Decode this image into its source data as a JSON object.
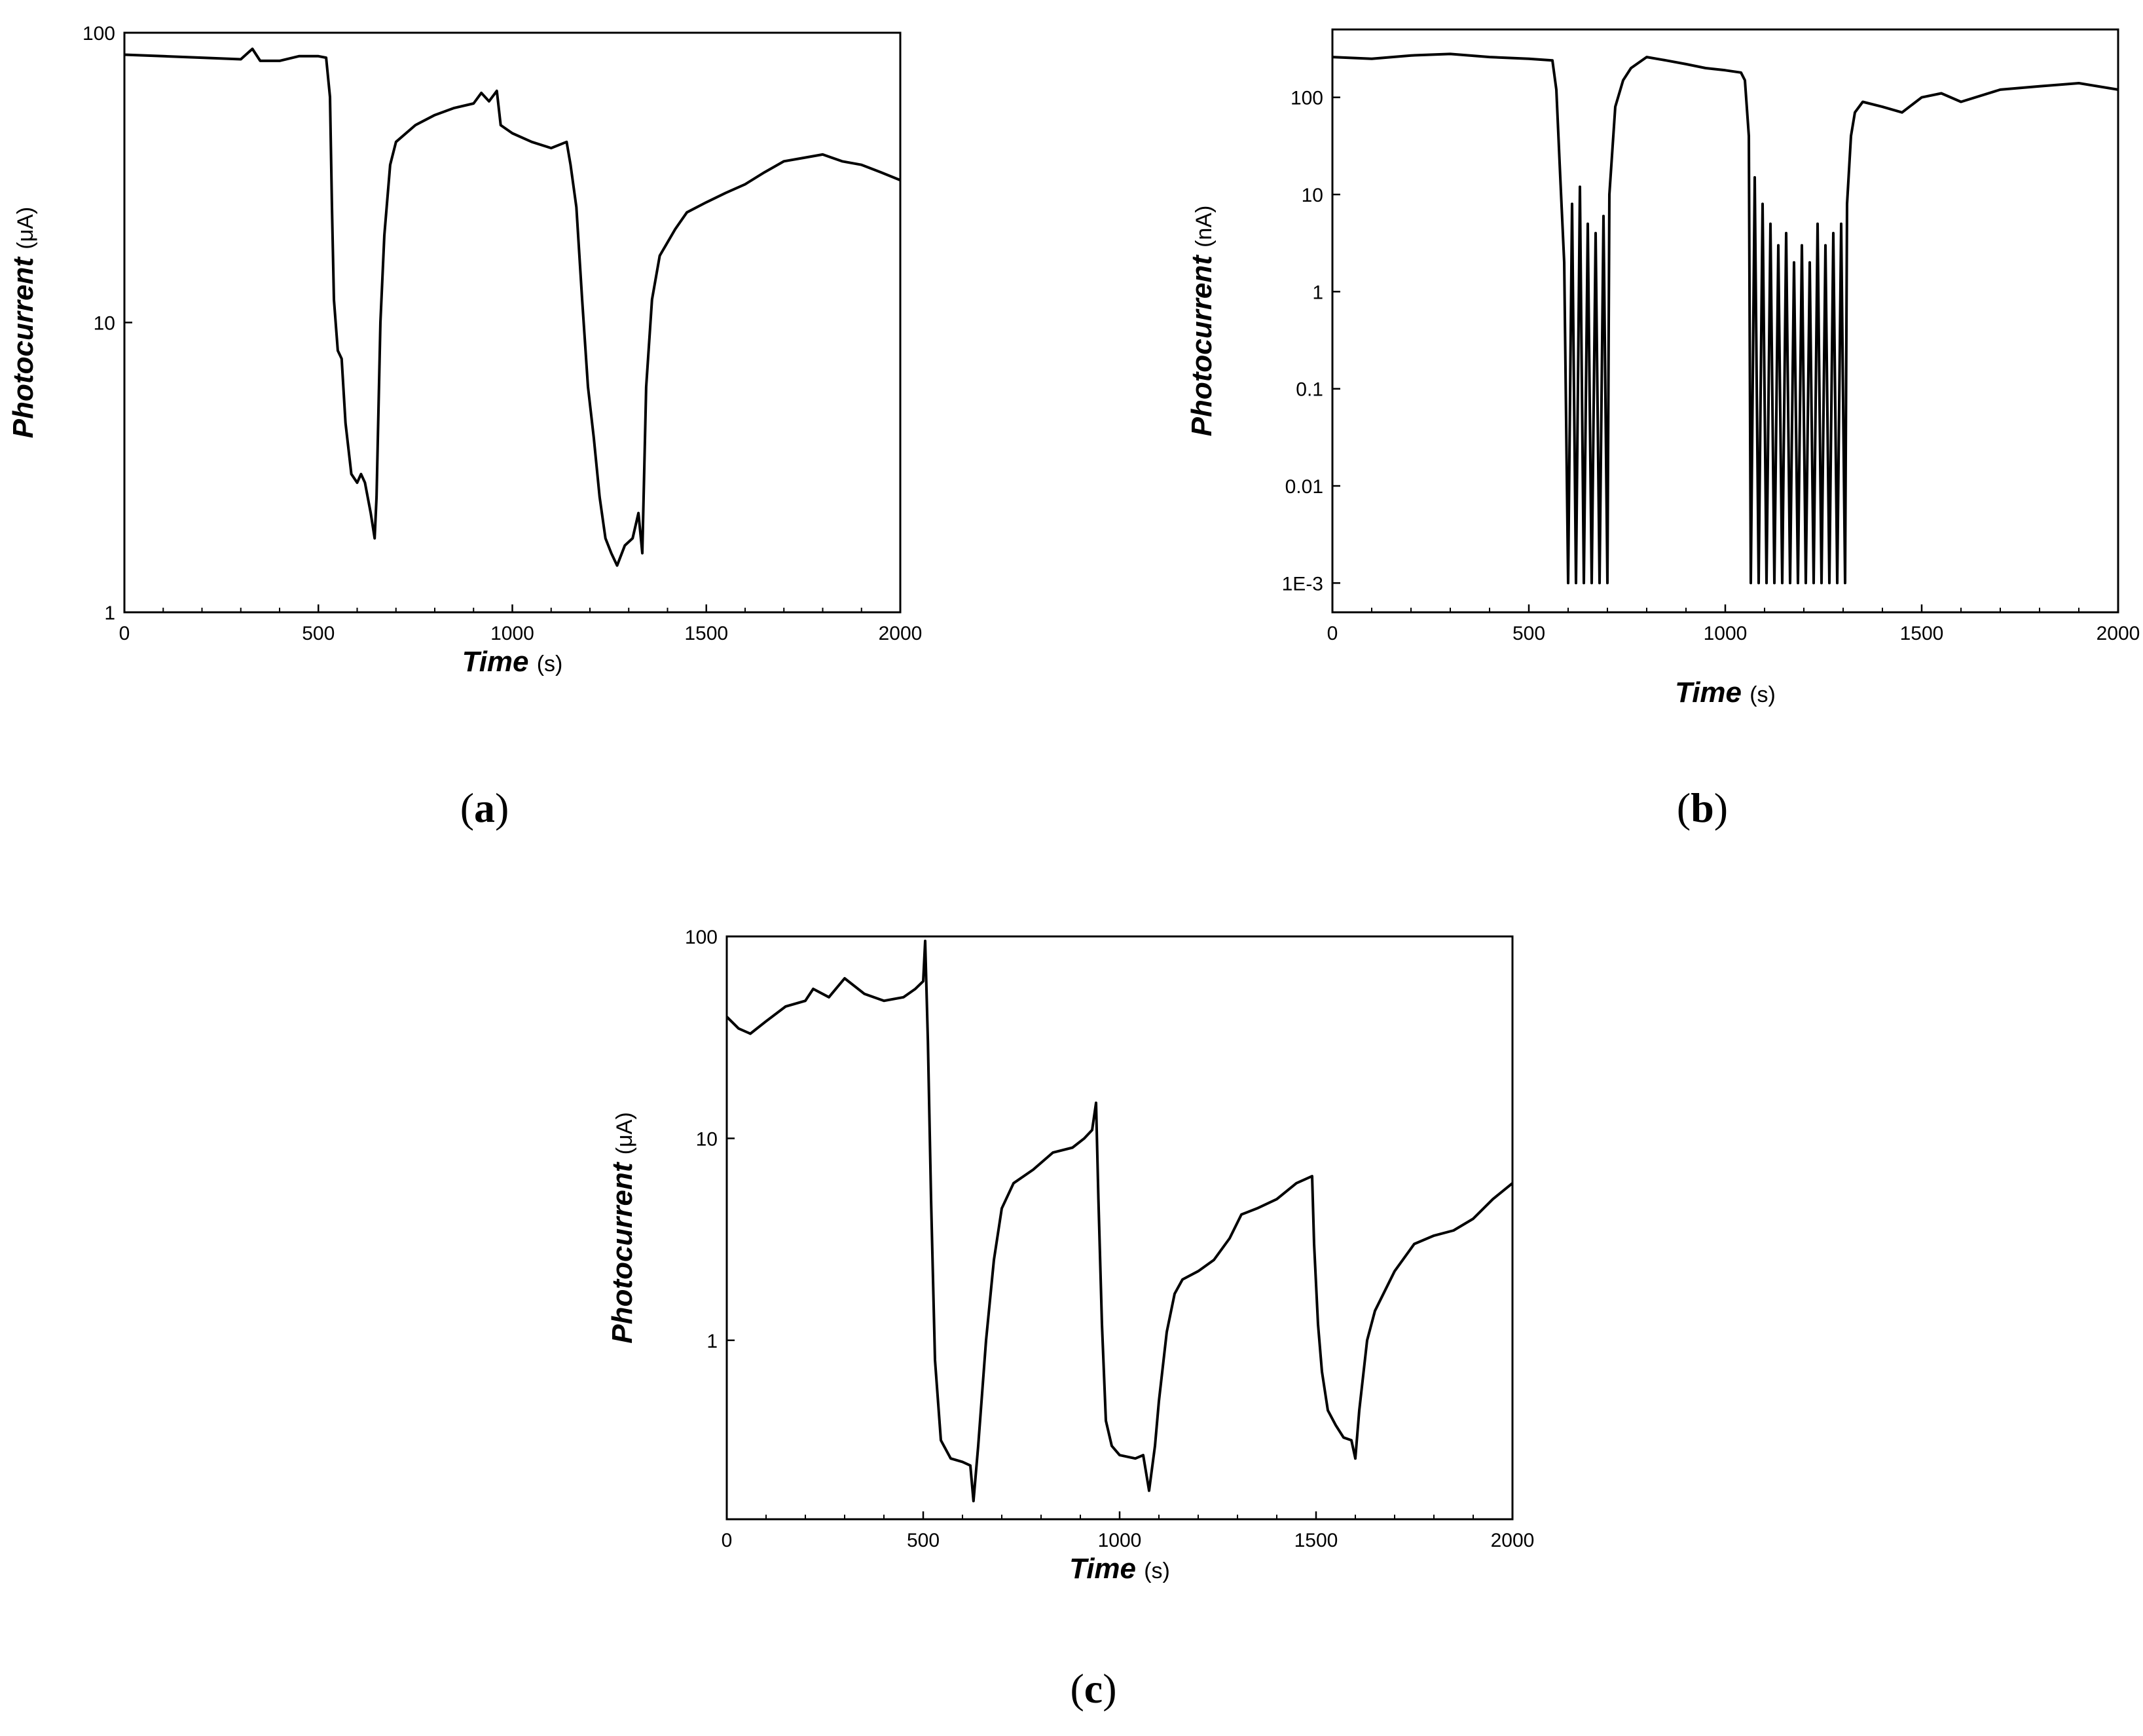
{
  "chart_data": [
    {
      "panel": "a",
      "type": "line",
      "xlabel": "Time",
      "xunit": "(s)",
      "ylabel": "Photocurrent",
      "yunit": "(μA)",
      "yscale": "log",
      "xlim": [
        0,
        2000
      ],
      "ylim": [
        1,
        100
      ],
      "xticks": [
        0,
        500,
        1000,
        1500,
        2000
      ],
      "yticks": [
        1,
        10,
        100
      ],
      "ytick_labels": [
        "1",
        "10",
        "100"
      ],
      "grid": false,
      "series": [
        {
          "points": [
            [
              0,
              84
            ],
            [
              100,
              83
            ],
            [
              200,
              82
            ],
            [
              300,
              81
            ],
            [
              330,
              88
            ],
            [
              350,
              80
            ],
            [
              400,
              80
            ],
            [
              450,
              83
            ],
            [
              500,
              83
            ],
            [
              520,
              82
            ],
            [
              530,
              60
            ],
            [
              535,
              25
            ],
            [
              540,
              12
            ],
            [
              550,
              8
            ],
            [
              560,
              7.5
            ],
            [
              570,
              4.5
            ],
            [
              585,
              3
            ],
            [
              600,
              2.8
            ],
            [
              610,
              3
            ],
            [
              620,
              2.8
            ],
            [
              635,
              2.2
            ],
            [
              645,
              1.8
            ],
            [
              650,
              2.5
            ],
            [
              660,
              10
            ],
            [
              670,
              20
            ],
            [
              685,
              35
            ],
            [
              700,
              42
            ],
            [
              750,
              48
            ],
            [
              800,
              52
            ],
            [
              850,
              55
            ],
            [
              900,
              57
            ],
            [
              920,
              62
            ],
            [
              940,
              58
            ],
            [
              960,
              63
            ],
            [
              970,
              48
            ],
            [
              1000,
              45
            ],
            [
              1050,
              42
            ],
            [
              1100,
              40
            ],
            [
              1140,
              42
            ],
            [
              1150,
              35
            ],
            [
              1165,
              25
            ],
            [
              1180,
              12
            ],
            [
              1195,
              6
            ],
            [
              1210,
              4
            ],
            [
              1225,
              2.5
            ],
            [
              1240,
              1.8
            ],
            [
              1255,
              1.6
            ],
            [
              1270,
              1.45
            ],
            [
              1290,
              1.7
            ],
            [
              1310,
              1.8
            ],
            [
              1325,
              2.2
            ],
            [
              1335,
              1.6
            ],
            [
              1345,
              6
            ],
            [
              1360,
              12
            ],
            [
              1380,
              17
            ],
            [
              1420,
              21
            ],
            [
              1450,
              24
            ],
            [
              1500,
              26
            ],
            [
              1550,
              28
            ],
            [
              1600,
              30
            ],
            [
              1650,
              33
            ],
            [
              1700,
              36
            ],
            [
              1750,
              37
            ],
            [
              1800,
              38
            ],
            [
              1850,
              36
            ],
            [
              1900,
              35
            ],
            [
              1950,
              33
            ],
            [
              2000,
              31
            ]
          ]
        }
      ]
    },
    {
      "panel": "b",
      "type": "line",
      "xlabel": "Time",
      "xunit": "(s)",
      "ylabel": "Photocurrent",
      "yunit": "(nA)",
      "yscale": "log",
      "xlim": [
        0,
        2000
      ],
      "ylim": [
        0.0005,
        500
      ],
      "xticks": [
        0,
        500,
        1000,
        1500,
        2000
      ],
      "yticks": [
        0.001,
        0.01,
        0.1,
        1,
        10,
        100
      ],
      "ytick_labels": [
        "1E-3",
        "0.01",
        "0.1",
        "1",
        "10",
        "100"
      ],
      "grid": false,
      "series": [
        {
          "points": [
            [
              0,
              260
            ],
            [
              100,
              250
            ],
            [
              200,
              270
            ],
            [
              300,
              280
            ],
            [
              400,
              260
            ],
            [
              500,
              250
            ],
            [
              560,
              240
            ],
            [
              570,
              120
            ],
            [
              580,
              15
            ],
            [
              590,
              2
            ],
            [
              600,
              0.001
            ],
            [
              610,
              8
            ],
            [
              620,
              0.001
            ],
            [
              630,
              12
            ],
            [
              640,
              0.001
            ],
            [
              650,
              5
            ],
            [
              660,
              0.001
            ],
            [
              670,
              4
            ],
            [
              680,
              0.001
            ],
            [
              690,
              6
            ],
            [
              700,
              0.001
            ],
            [
              705,
              10
            ],
            [
              720,
              80
            ],
            [
              740,
              150
            ],
            [
              760,
              200
            ],
            [
              800,
              260
            ],
            [
              850,
              240
            ],
            [
              900,
              220
            ],
            [
              950,
              200
            ],
            [
              1000,
              190
            ],
            [
              1040,
              180
            ],
            [
              1050,
              150
            ],
            [
              1060,
              40
            ],
            [
              1065,
              0.001
            ],
            [
              1075,
              15
            ],
            [
              1085,
              0.001
            ],
            [
              1095,
              8
            ],
            [
              1105,
              0.001
            ],
            [
              1115,
              5
            ],
            [
              1125,
              0.001
            ],
            [
              1135,
              3
            ],
            [
              1145,
              0.001
            ],
            [
              1155,
              4
            ],
            [
              1165,
              0.001
            ],
            [
              1175,
              2
            ],
            [
              1185,
              0.001
            ],
            [
              1195,
              3
            ],
            [
              1205,
              0.001
            ],
            [
              1215,
              2
            ],
            [
              1225,
              0.001
            ],
            [
              1235,
              5
            ],
            [
              1245,
              0.001
            ],
            [
              1255,
              3
            ],
            [
              1265,
              0.001
            ],
            [
              1275,
              4
            ],
            [
              1285,
              0.001
            ],
            [
              1295,
              5
            ],
            [
              1305,
              0.001
            ],
            [
              1310,
              8
            ],
            [
              1320,
              40
            ],
            [
              1330,
              70
            ],
            [
              1350,
              90
            ],
            [
              1400,
              80
            ],
            [
              1450,
              70
            ],
            [
              1500,
              100
            ],
            [
              1550,
              110
            ],
            [
              1600,
              90
            ],
            [
              1700,
              120
            ],
            [
              1800,
              130
            ],
            [
              1900,
              140
            ],
            [
              2000,
              120
            ]
          ]
        }
      ]
    },
    {
      "panel": "c",
      "type": "line",
      "xlabel": "Time",
      "xunit": "(s)",
      "ylabel": "Photocurrent",
      "yunit": "(μA)",
      "yscale": "log",
      "xlim": [
        0,
        2000
      ],
      "ylim": [
        0.13,
        100
      ],
      "xticks": [
        0,
        500,
        1000,
        1500,
        2000
      ],
      "yticks": [
        1,
        10,
        100
      ],
      "ytick_labels": [
        "1",
        "10",
        "100"
      ],
      "grid": false,
      "series": [
        {
          "points": [
            [
              0,
              40
            ],
            [
              30,
              35
            ],
            [
              60,
              33
            ],
            [
              100,
              38
            ],
            [
              150,
              45
            ],
            [
              200,
              48
            ],
            [
              220,
              55
            ],
            [
              260,
              50
            ],
            [
              300,
              62
            ],
            [
              350,
              52
            ],
            [
              400,
              48
            ],
            [
              450,
              50
            ],
            [
              480,
              55
            ],
            [
              500,
              60
            ],
            [
              505,
              95
            ],
            [
              512,
              30
            ],
            [
              520,
              5
            ],
            [
              530,
              0.8
            ],
            [
              545,
              0.32
            ],
            [
              570,
              0.26
            ],
            [
              600,
              0.25
            ],
            [
              620,
              0.24
            ],
            [
              628,
              0.16
            ],
            [
              640,
              0.3
            ],
            [
              660,
              1
            ],
            [
              680,
              2.5
            ],
            [
              700,
              4.5
            ],
            [
              730,
              6
            ],
            [
              780,
              7
            ],
            [
              830,
              8.5
            ],
            [
              880,
              9
            ],
            [
              910,
              10
            ],
            [
              930,
              11
            ],
            [
              940,
              15
            ],
            [
              946,
              5
            ],
            [
              955,
              1.2
            ],
            [
              965,
              0.4
            ],
            [
              980,
              0.3
            ],
            [
              1000,
              0.27
            ],
            [
              1040,
              0.26
            ],
            [
              1060,
              0.27
            ],
            [
              1075,
              0.18
            ],
            [
              1090,
              0.3
            ],
            [
              1100,
              0.5
            ],
            [
              1120,
              1.1
            ],
            [
              1140,
              1.7
            ],
            [
              1160,
              2
            ],
            [
              1200,
              2.2
            ],
            [
              1240,
              2.5
            ],
            [
              1280,
              3.2
            ],
            [
              1310,
              4.2
            ],
            [
              1350,
              4.5
            ],
            [
              1400,
              5
            ],
            [
              1450,
              6
            ],
            [
              1490,
              6.5
            ],
            [
              1495,
              3
            ],
            [
              1505,
              1.2
            ],
            [
              1515,
              0.7
            ],
            [
              1530,
              0.45
            ],
            [
              1550,
              0.38
            ],
            [
              1570,
              0.33
            ],
            [
              1590,
              0.32
            ],
            [
              1600,
              0.26
            ],
            [
              1610,
              0.45
            ],
            [
              1630,
              1
            ],
            [
              1650,
              1.4
            ],
            [
              1700,
              2.2
            ],
            [
              1750,
              3
            ],
            [
              1800,
              3.3
            ],
            [
              1850,
              3.5
            ],
            [
              1900,
              4
            ],
            [
              1950,
              5
            ],
            [
              2000,
              6
            ]
          ]
        }
      ]
    }
  ],
  "panel_labels": {
    "a": "(a)",
    "b": "(b)",
    "c": "(c)",
    "a_letter": "a",
    "b_letter": "b",
    "c_letter": "c",
    "open": "(",
    "close": ")"
  }
}
